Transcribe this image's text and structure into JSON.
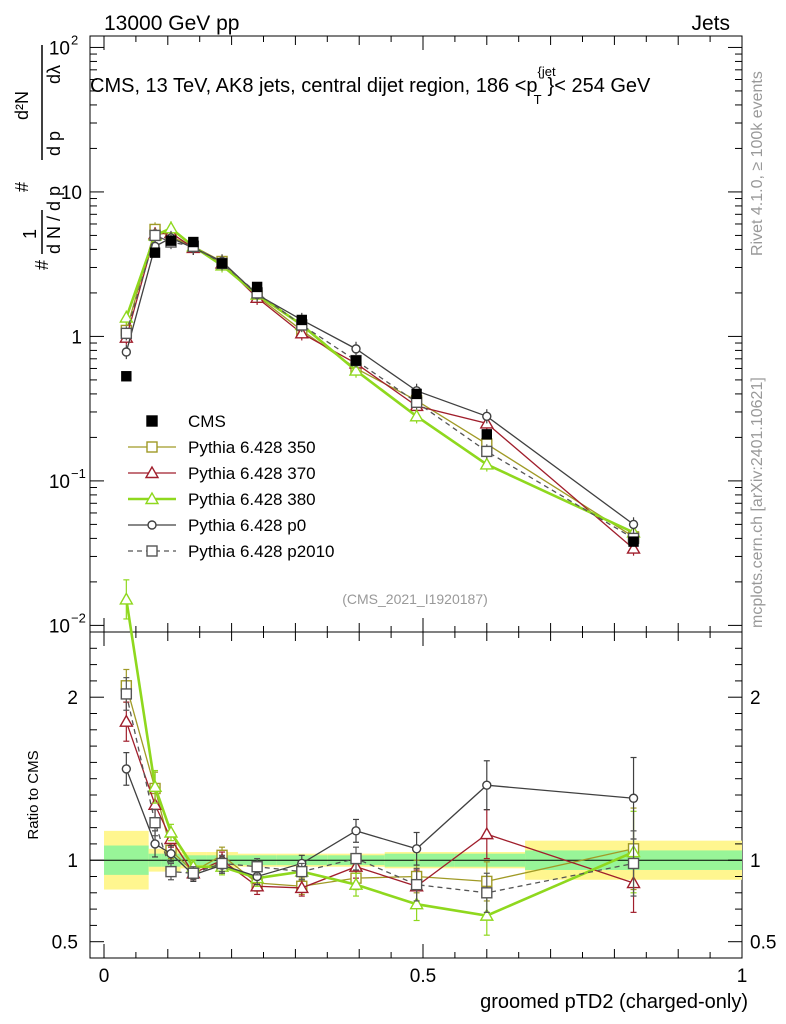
{
  "header": {
    "energy": "13000 GeV pp",
    "category": "Jets",
    "title": "CMS, 13 TeV, AK8 jets, central dijet region, 186 <p",
    "title_sup": "{jet",
    "title_sub": "T",
    "title_end": "}< 254 GeV",
    "analysis_id": "(CMS_2021_I1920187)",
    "side_rivet": "Rivet 4.1.0, ≥ 100k events",
    "side_mcplots": "mcplots.cern.ch [arXiv:2401.10621]"
  },
  "chart_data": {
    "type": "scatter",
    "upper": {
      "ylabel": "1/N dN/dλ (#, dN, dpT, dλ stacked)",
      "yscale": "log",
      "ylim": [
        0.009,
        120
      ],
      "yticks": [
        {
          "v": 0.01,
          "label": "10",
          "sup": "−2"
        },
        {
          "v": 0.1,
          "label": "10",
          "sup": "−1"
        },
        {
          "v": 1,
          "label": "1",
          "sup": ""
        },
        {
          "v": 10,
          "label": "10",
          "sup": ""
        },
        {
          "v": 100,
          "label": "10",
          "sup": "2"
        }
      ]
    },
    "lower": {
      "ylabel": "Ratio to CMS",
      "ylim": [
        0.4,
        2.4
      ],
      "yticks": [
        {
          "v": 0.5,
          "label": "0.5"
        },
        {
          "v": 1,
          "label": "1"
        },
        {
          "v": 2,
          "label": "2"
        }
      ]
    },
    "xlabel": "groomed pTD2 (charged-only)",
    "xlim": [
      0,
      1
    ],
    "xticks": [
      {
        "v": 0,
        "label": "0"
      },
      {
        "v": 0.5,
        "label": "0.5"
      },
      {
        "v": 1,
        "label": "1"
      }
    ],
    "bins": [
      {
        "lo": 0.0,
        "hi": 0.07
      },
      {
        "lo": 0.07,
        "hi": 0.09
      },
      {
        "lo": 0.09,
        "hi": 0.12
      },
      {
        "lo": 0.12,
        "hi": 0.16
      },
      {
        "lo": 0.16,
        "hi": 0.21
      },
      {
        "lo": 0.21,
        "hi": 0.27
      },
      {
        "lo": 0.27,
        "hi": 0.35
      },
      {
        "lo": 0.35,
        "hi": 0.44
      },
      {
        "lo": 0.44,
        "hi": 0.55
      },
      {
        "lo": 0.55,
        "hi": 0.66
      },
      {
        "lo": 0.66,
        "hi": 1.0
      }
    ],
    "x": [
      0.035,
      0.08,
      0.105,
      0.14,
      0.185,
      0.24,
      0.31,
      0.395,
      0.49,
      0.6,
      0.83
    ],
    "cms": {
      "name": "CMS",
      "color": "#000000",
      "values": [
        0.53,
        3.8,
        4.6,
        4.5,
        3.2,
        2.2,
        1.3,
        0.68,
        0.4,
        0.21,
        0.038
      ],
      "ratio_band_inner": [
        [
          0.91,
          1.09
        ],
        [
          0.96,
          1.04
        ],
        [
          0.96,
          1.04
        ],
        [
          0.97,
          1.03
        ],
        [
          0.97,
          1.03
        ],
        [
          0.97,
          1.03
        ],
        [
          0.97,
          1.03
        ],
        [
          0.97,
          1.03
        ],
        [
          0.96,
          1.04
        ],
        [
          0.96,
          1.04
        ],
        [
          0.94,
          1.06
        ]
      ],
      "ratio_band_outer": [
        [
          0.82,
          1.18
        ],
        [
          0.93,
          1.07
        ],
        [
          0.93,
          1.07
        ],
        [
          0.95,
          1.05
        ],
        [
          0.95,
          1.05
        ],
        [
          0.96,
          1.04
        ],
        [
          0.96,
          1.04
        ],
        [
          0.96,
          1.04
        ],
        [
          0.95,
          1.05
        ],
        [
          0.95,
          1.05
        ],
        [
          0.88,
          1.12
        ]
      ]
    },
    "series": [
      {
        "name": "Pythia 6.428 350",
        "color": "#a09a26",
        "marker": "square",
        "dashed": false,
        "width": 1.3,
        "values": [
          1.1,
          5.5,
          4.9,
          4.2,
          3.3,
          1.9,
          1.1,
          0.6,
          0.36,
          0.18,
          0.041
        ],
        "ratio": [
          2.07,
          1.44,
          1.06,
          0.93,
          1.03,
          0.86,
          0.84,
          0.89,
          0.9,
          0.87,
          1.07
        ],
        "ratio_err": [
          0.1,
          0.1,
          0.05,
          0.04,
          0.05,
          0.05,
          0.05,
          0.07,
          0.1,
          0.12,
          0.25
        ]
      },
      {
        "name": "Pythia 6.428 370",
        "color": "#a01e2c",
        "marker": "triangle",
        "dashed": false,
        "width": 1.3,
        "values": [
          0.98,
          5.1,
          5.2,
          4.1,
          3.2,
          1.85,
          1.05,
          0.65,
          0.33,
          0.25,
          0.034
        ],
        "ratio": [
          1.85,
          1.34,
          1.13,
          0.92,
          1.0,
          0.84,
          0.83,
          0.96,
          0.84,
          1.16,
          0.86
        ],
        "ratio_err": [
          0.12,
          0.1,
          0.05,
          0.04,
          0.05,
          0.05,
          0.05,
          0.07,
          0.1,
          0.15,
          0.18
        ]
      },
      {
        "name": "Pythia 6.428 380",
        "color": "#8fd81e",
        "marker": "triangle",
        "dashed": false,
        "width": 2.6,
        "values": [
          1.35,
          5.0,
          5.6,
          4.2,
          3.1,
          1.95,
          1.2,
          0.58,
          0.28,
          0.13,
          0.044
        ],
        "ratio": [
          2.6,
          1.45,
          1.17,
          0.96,
          0.96,
          0.89,
          0.93,
          0.85,
          0.73,
          0.66,
          1.05
        ],
        "ratio_err": [
          0.12,
          0.1,
          0.05,
          0.04,
          0.05,
          0.05,
          0.05,
          0.07,
          0.1,
          0.12,
          0.25
        ]
      },
      {
        "name": "Pythia 6.428 p0",
        "color": "#404040",
        "marker": "circle",
        "dashed": false,
        "width": 1.3,
        "values": [
          0.78,
          4.2,
          4.8,
          4.1,
          3.3,
          1.95,
          1.3,
          0.82,
          0.42,
          0.28,
          0.05
        ],
        "ratio": [
          1.56,
          1.1,
          1.04,
          0.91,
          0.97,
          0.9,
          0.98,
          1.18,
          1.07,
          1.46,
          1.38
        ],
        "ratio_err": [
          0.1,
          0.08,
          0.05,
          0.04,
          0.05,
          0.05,
          0.05,
          0.07,
          0.1,
          0.15,
          0.25
        ]
      },
      {
        "name": "Pythia 6.428 p2010",
        "color": "#555555",
        "marker": "square",
        "dashed": true,
        "width": 1.3,
        "values": [
          1.05,
          5.0,
          4.5,
          4.2,
          3.2,
          2.0,
          1.2,
          0.68,
          0.35,
          0.16,
          0.04
        ],
        "ratio": [
          2.02,
          1.23,
          0.93,
          0.92,
          0.98,
          0.96,
          0.93,
          1.01,
          0.85,
          0.8,
          0.98
        ],
        "ratio_err": [
          0.1,
          0.08,
          0.05,
          0.04,
          0.05,
          0.05,
          0.05,
          0.07,
          0.1,
          0.12,
          0.2
        ]
      }
    ]
  }
}
